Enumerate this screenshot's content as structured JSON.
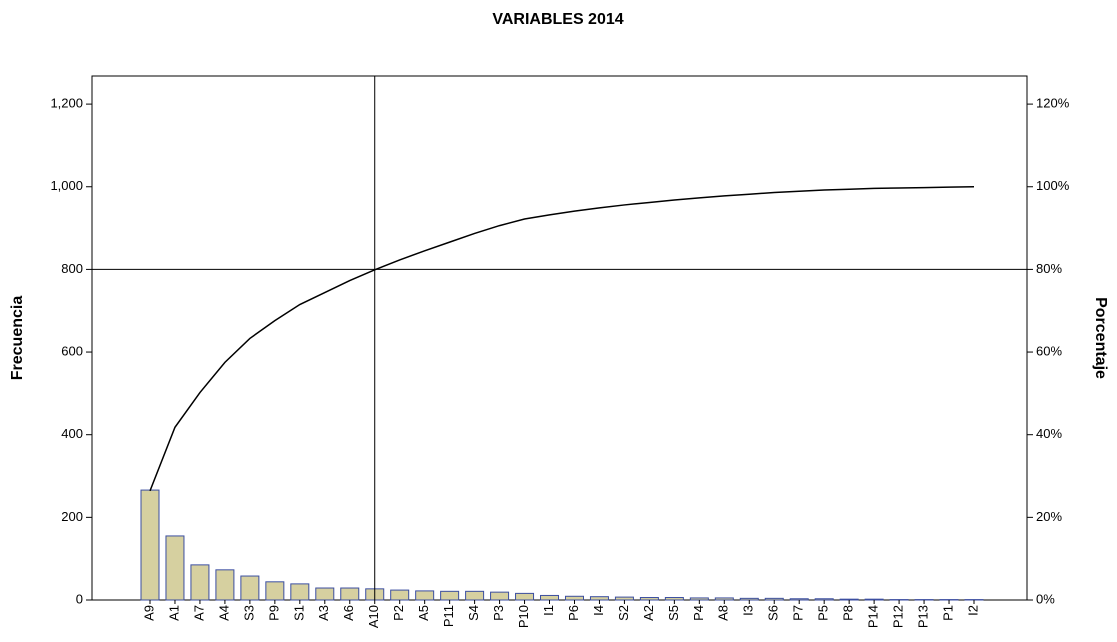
{
  "chart_data": {
    "type": "pareto",
    "title": "VARIABLES 2014",
    "ylabel": "Frecuencia",
    "y2label": "Porcentaje",
    "categories": [
      "A9",
      "A1",
      "A7",
      "A4",
      "S3",
      "P9",
      "S1",
      "A3",
      "A6",
      "A10",
      "P2",
      "A5",
      "P11",
      "S4",
      "P3",
      "P10",
      "I1",
      "P6",
      "I4",
      "S2",
      "A2",
      "S5",
      "P4",
      "A8",
      "I3",
      "S6",
      "P7",
      "P5",
      "P8",
      "P14",
      "P12",
      "P13",
      "P1",
      "I2"
    ],
    "series": [
      {
        "name": "Frecuencia",
        "color": "#d6d0a0",
        "values": [
          266,
          155,
          85,
          73,
          58,
          44,
          39,
          29,
          29,
          27,
          24,
          22,
          21,
          21,
          19,
          16,
          11,
          9,
          8,
          7,
          6,
          6,
          5,
          5,
          4,
          4,
          3,
          3,
          2,
          2,
          1,
          1,
          1,
          1
        ]
      },
      {
        "name": "Porcentaje",
        "color": "#000000",
        "axis": "y2",
        "values": [
          26.4,
          41.8,
          50.2,
          57.5,
          63.3,
          67.6,
          71.5,
          74.4,
          77.3,
          79.9,
          82.3,
          84.5,
          86.6,
          88.7,
          90.6,
          92.2,
          93.2,
          94.1,
          94.9,
          95.6,
          96.2,
          96.8,
          97.3,
          97.8,
          98.2,
          98.6,
          98.9,
          99.2,
          99.4,
          99.6,
          99.7,
          99.8,
          99.9,
          100
        ]
      }
    ],
    "bar_edge_color": "#3b4ea0",
    "ylim": [
      0,
      1268
    ],
    "yticks": [
      0,
      200,
      400,
      600,
      800,
      {
        "value": 1000,
        "label": "1,000"
      },
      {
        "value": 1200,
        "label": "1,200"
      }
    ],
    "y2lim": [
      0,
      126.8
    ],
    "y2ticks": [
      {
        "value": 0,
        "label": "0%"
      },
      {
        "value": 20,
        "label": "20%"
      },
      {
        "value": 40,
        "label": "40%"
      },
      {
        "value": 60,
        "label": "60%"
      },
      {
        "value": 80,
        "label": "80%"
      },
      {
        "value": 100,
        "label": "100%"
      },
      {
        "value": 120,
        "label": "120%"
      }
    ],
    "reference_lines": {
      "x": "A10",
      "y2": 80
    }
  }
}
